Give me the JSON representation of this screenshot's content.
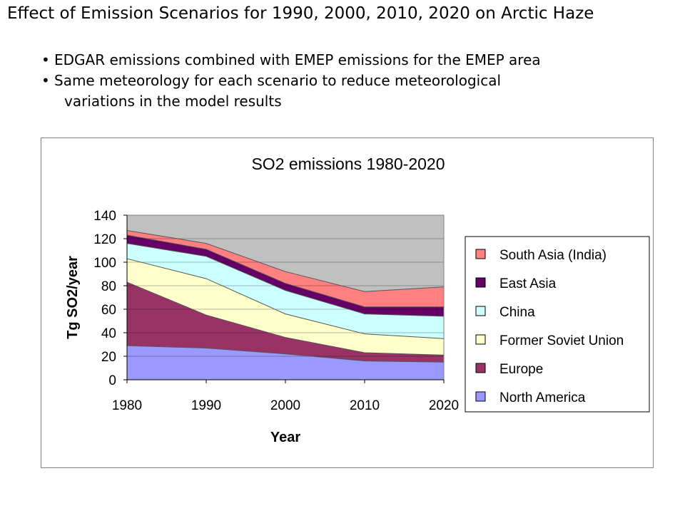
{
  "slide": {
    "title": "Effect of Emission Scenarios for 1990, 2000, 2010, 2020 on Arctic Haze",
    "bullets": [
      {
        "line1": "EDGAR emissions combined with EMEP emissions for the EMEP area",
        "line2": ""
      },
      {
        "line1": "Same meteorology for each scenario to reduce meteorological",
        "line2": "variations in the model results"
      }
    ],
    "bullet_glyph": "•"
  },
  "chart_data": {
    "type": "area",
    "stacked": true,
    "title": "SO2 emissions 1980-2020",
    "xlabel": "Year",
    "ylabel": "Tg SO2/year",
    "x": [
      1980,
      1990,
      2000,
      2010,
      2020
    ],
    "xticks": [
      "1980",
      "1990",
      "2000",
      "2010",
      "2020"
    ],
    "yticks": [
      "0",
      "20",
      "40",
      "60",
      "80",
      "100",
      "120",
      "140"
    ],
    "ylim": [
      0,
      140
    ],
    "plot_background": "#c0c0c0",
    "grid": true,
    "legend_position": "right",
    "series": [
      {
        "name": "North America",
        "values": [
          29,
          27,
          22,
          16,
          15
        ],
        "color": "#9999ff"
      },
      {
        "name": "Europe",
        "values": [
          54,
          28,
          14,
          7,
          6
        ],
        "color": "#993366"
      },
      {
        "name": "Former Soviet Union",
        "values": [
          20,
          31,
          20,
          16,
          14
        ],
        "color": "#ffffcc"
      },
      {
        "name": "China",
        "values": [
          13,
          19,
          20,
          17,
          19
        ],
        "color": "#ccffff"
      },
      {
        "name": "East Asia",
        "values": [
          7,
          6,
          6,
          6,
          8
        ],
        "color": "#660066"
      },
      {
        "name": "South Asia (India)",
        "values": [
          4,
          5,
          10,
          13,
          17
        ],
        "color": "#ff8080"
      }
    ]
  }
}
